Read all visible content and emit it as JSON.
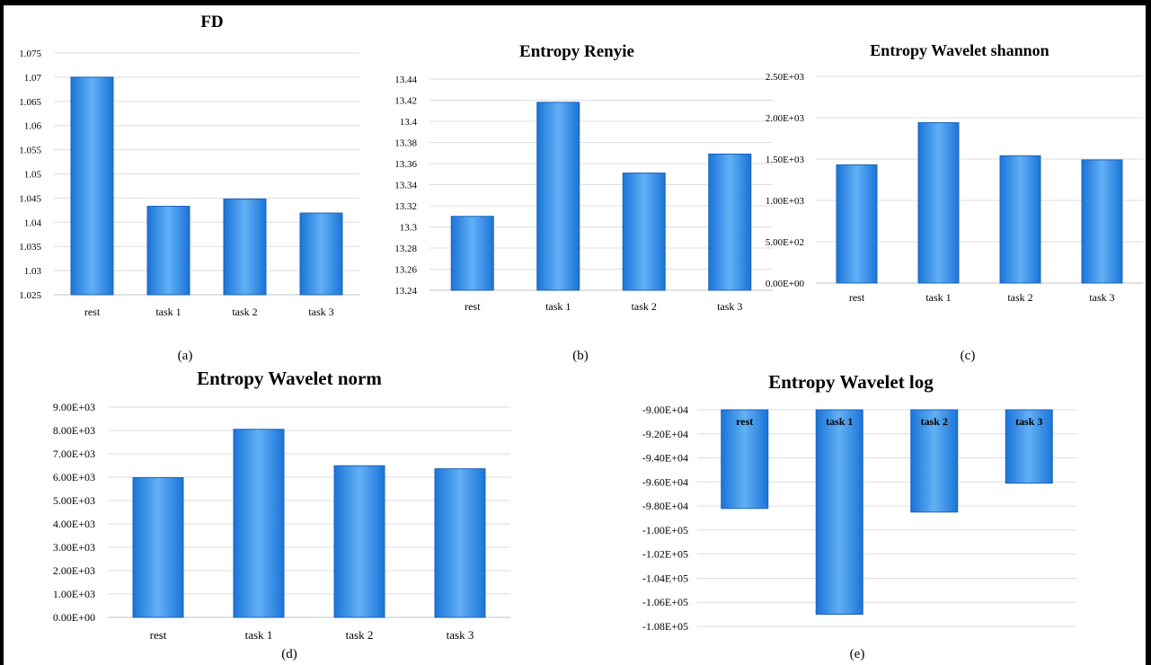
{
  "chart_data": [
    {
      "id": "a",
      "type": "bar",
      "title": "FD",
      "caption": "(a)",
      "categories": [
        "rest",
        "task 1",
        "task 2",
        "task 3"
      ],
      "values": [
        1.07,
        1.0433,
        1.0448,
        1.0419
      ],
      "ylim": [
        1.025,
        1.075
      ],
      "yticks": [
        "1.075",
        "1.07",
        "1.065",
        "1.06",
        "1.055",
        "1.05",
        "1.045",
        "1.04",
        "1.035",
        "1.03",
        "1.025"
      ],
      "grid": true
    },
    {
      "id": "b",
      "type": "bar",
      "title": "Entropy Renyie",
      "caption": "(b)",
      "categories": [
        "rest",
        "task 1",
        "task 2",
        "task 3"
      ],
      "values": [
        13.31,
        13.418,
        13.351,
        13.369
      ],
      "ylim": [
        13.24,
        13.44
      ],
      "yticks": [
        "13.44",
        "13.42",
        "13.4",
        "13.38",
        "13.36",
        "13.34",
        "13.32",
        "13.3",
        "13.28",
        "13.26",
        "13.24"
      ],
      "grid": true
    },
    {
      "id": "c",
      "type": "bar",
      "title": "Entropy Wavelet shannon",
      "caption": "(c)",
      "categories": [
        "rest",
        "task 1",
        "task 2",
        "task 3"
      ],
      "values": [
        1430,
        1940,
        1540,
        1490
      ],
      "ylim": [
        0,
        2500
      ],
      "yticks": [
        "2.50E+03",
        "2.00E+03",
        "1.50E+03",
        "1.00E+03",
        "5.00E+02",
        "0.00E+00"
      ],
      "grid": true
    },
    {
      "id": "d",
      "type": "bar",
      "title": "Entropy Wavelet norm",
      "caption": "(d)",
      "categories": [
        "rest",
        "task 1",
        "task 2",
        "task 3"
      ],
      "values": [
        5980,
        8050,
        6490,
        6360
      ],
      "ylim": [
        0,
        9000
      ],
      "yticks": [
        "9.00E+03",
        "8.00E+03",
        "7.00E+03",
        "6.00E+03",
        "5.00E+03",
        "4.00E+03",
        "3.00E+03",
        "2.00E+03",
        "1.00E+03",
        "0.00E+00"
      ],
      "grid": true
    },
    {
      "id": "e",
      "type": "bar",
      "title": "Entropy Wavelet log",
      "caption": "(e)",
      "categories": [
        "rest",
        "task 1",
        "task 2",
        "task 3"
      ],
      "values": [
        -98200,
        -107000,
        -98500,
        -96100
      ],
      "ylim": [
        -108000,
        -90000
      ],
      "yticks": [
        "-9.00E+04",
        "-9.20E+04",
        "-9.40E+04",
        "-9.60E+04",
        "-9.80E+04",
        "-1.00E+05",
        "-1.02E+05",
        "-1.04E+05",
        "-1.06E+05",
        "-1.08E+05"
      ],
      "grid": true
    }
  ],
  "colors": {
    "bar_light": "#62b0f5",
    "bar_dark": "#1a74d8",
    "bar_edge": "#1c63b8"
  }
}
